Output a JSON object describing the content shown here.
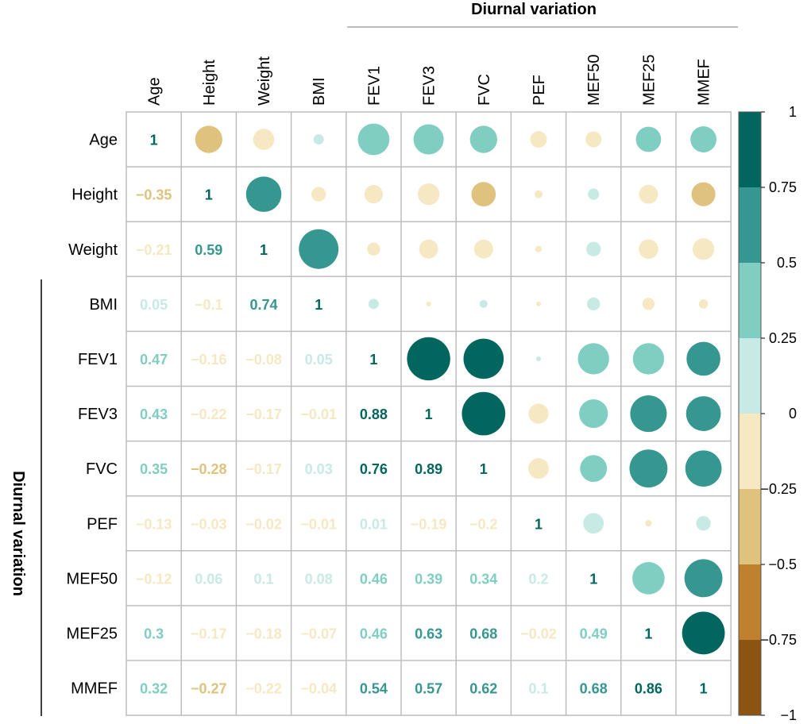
{
  "chart_data": {
    "type": "heatmap",
    "subtype": "correlation-matrix",
    "top_title": "Diurnal variation",
    "left_title": "Diurnal variation",
    "variables": [
      "Age",
      "Height",
      "Weight",
      "BMI",
      "FEV1",
      "FEV3",
      "FVC",
      "PEF",
      "MEF50",
      "MEF25",
      "MMEF"
    ],
    "matrix": [
      [
        1,
        -0.35,
        -0.21,
        0.05,
        0.47,
        0.43,
        0.35,
        -0.13,
        -0.12,
        0.3,
        0.32
      ],
      [
        -0.35,
        1,
        0.59,
        -0.1,
        -0.16,
        -0.22,
        -0.28,
        -0.03,
        0.06,
        -0.17,
        -0.27
      ],
      [
        -0.21,
        0.59,
        1,
        0.74,
        -0.08,
        -0.17,
        -0.17,
        -0.02,
        0.1,
        -0.18,
        -0.22
      ],
      [
        0.05,
        -0.1,
        0.74,
        1,
        0.05,
        -0.01,
        0.03,
        -0.01,
        0.08,
        -0.07,
        -0.04
      ],
      [
        0.47,
        -0.16,
        -0.08,
        0.05,
        1,
        0.88,
        0.76,
        0.01,
        0.46,
        0.46,
        0.54
      ],
      [
        0.43,
        -0.22,
        -0.17,
        -0.01,
        0.88,
        1,
        0.89,
        -0.19,
        0.39,
        0.63,
        0.57
      ],
      [
        0.35,
        -0.28,
        -0.17,
        0.03,
        0.76,
        0.89,
        1,
        -0.2,
        0.34,
        0.68,
        0.62
      ],
      [
        -0.13,
        -0.03,
        -0.02,
        -0.01,
        0.01,
        -0.19,
        -0.2,
        1,
        0.2,
        -0.02,
        0.1
      ],
      [
        -0.12,
        0.06,
        0.1,
        0.08,
        0.46,
        0.39,
        0.34,
        0.2,
        1,
        0.49,
        0.68
      ],
      [
        0.3,
        -0.17,
        -0.18,
        -0.07,
        0.46,
        0.63,
        0.68,
        -0.02,
        0.49,
        1,
        0.86
      ],
      [
        0.32,
        -0.27,
        -0.22,
        -0.04,
        0.54,
        0.57,
        0.62,
        0.1,
        0.68,
        0.86,
        1
      ]
    ],
    "lower_triangle": "numbers",
    "upper_triangle": "circles",
    "color_scale": {
      "range": [
        -1,
        1
      ],
      "breaks": [
        -1,
        -0.75,
        -0.5,
        -0.25,
        0,
        0.25,
        0.5,
        0.75,
        1
      ],
      "tick_labels": [
        "1",
        "0.75",
        "0.5",
        "0.25",
        "0",
        "−0.25",
        "−0.5",
        "−0.75",
        "−1"
      ],
      "colors_neg_to_pos": [
        "#8c5411",
        "#bf812d",
        "#dfc27d",
        "#f6e8c3",
        "#c7eae5",
        "#80cdc1",
        "#35978f",
        "#01665e"
      ]
    }
  }
}
